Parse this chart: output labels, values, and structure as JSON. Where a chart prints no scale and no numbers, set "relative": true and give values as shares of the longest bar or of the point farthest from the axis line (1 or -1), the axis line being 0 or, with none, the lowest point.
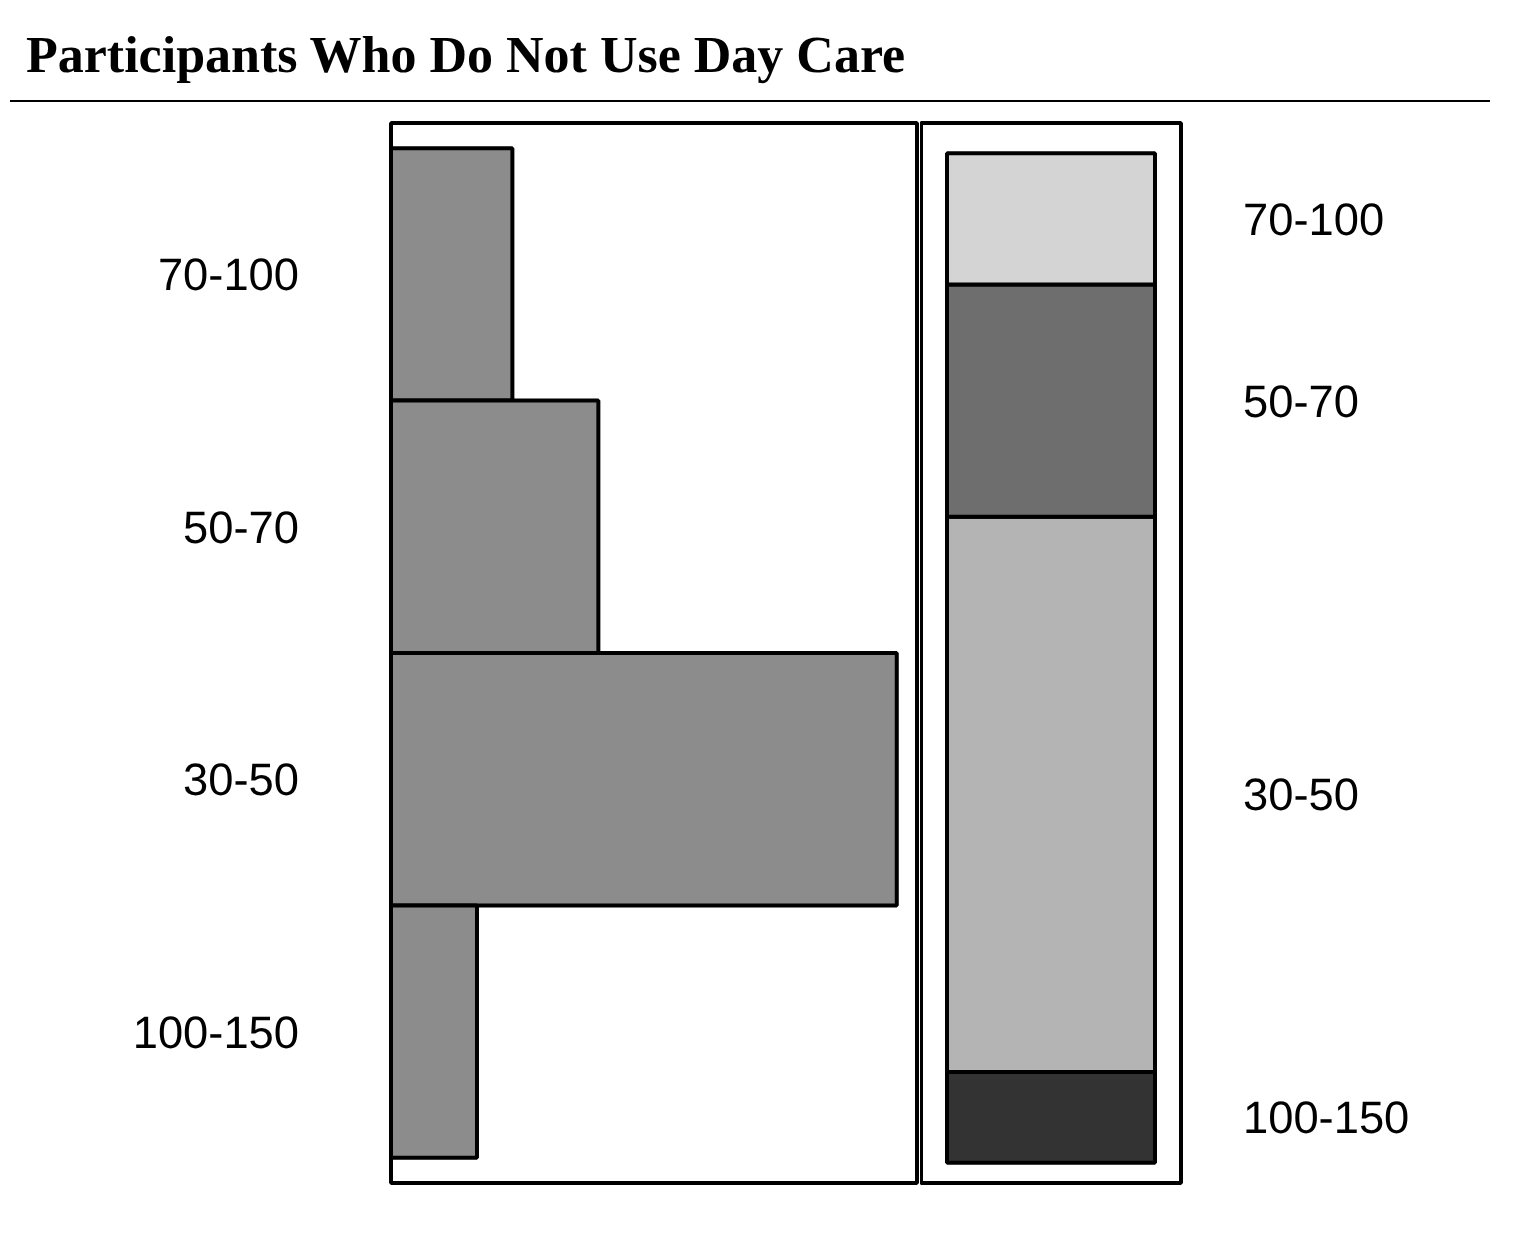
{
  "chart_data": [
    {
      "type": "bar",
      "title": "Participants Who Do Not Use Day Care",
      "orientation": "horizontal",
      "relative": true,
      "categories": [
        "70-100",
        "50-70",
        "30-50",
        "100-150"
      ],
      "values": [
        0.24,
        0.41,
        1,
        0.17
      ],
      "color": "#8c8c8c",
      "tick_labels": "y",
      "grid": false
    },
    {
      "type": "bar",
      "stacked": true,
      "relative": true,
      "categories": [
        null
      ],
      "tick_labels": false,
      "grid": false,
      "series": [
        {
          "name": "100-150",
          "color": "#333333",
          "values": [
            0.09
          ]
        },
        {
          "name": "30-50",
          "color": "#b4b4b4",
          "values": [
            0.55
          ]
        },
        {
          "name": "50-70",
          "color": "#6e6e6e",
          "values": [
            0.23
          ]
        },
        {
          "name": "70-100",
          "color": "#d4d4d4",
          "values": [
            0.13
          ]
        }
      ]
    }
  ]
}
